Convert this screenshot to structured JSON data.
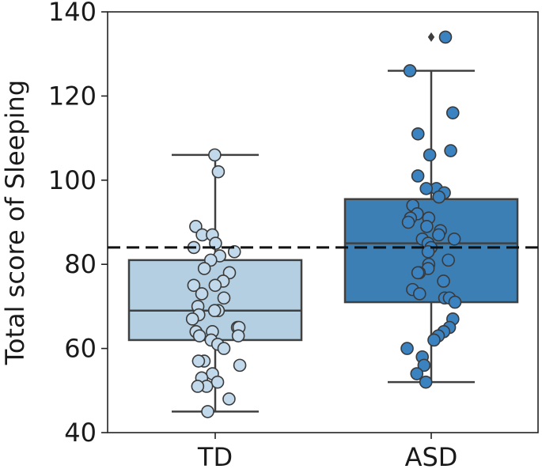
{
  "chart_data": {
    "type": "box",
    "title": "",
    "xlabel": "",
    "ylabel": "Total score of Sleeping",
    "ylim": [
      40,
      140
    ],
    "yticks": [
      40,
      60,
      80,
      100,
      120,
      140
    ],
    "ytick_labels": [
      "40",
      "60",
      "80",
      "100",
      "120",
      "140"
    ],
    "categories": [
      "TD",
      "ASD"
    ],
    "reference_line": {
      "y": 84,
      "style": "dashed",
      "color": "#111111"
    },
    "groups": [
      {
        "name": "TD",
        "box_color": "#b3cfe1",
        "point_color": "#c1d9ea",
        "whisker_low": 45,
        "q1": 62,
        "median": 69,
        "q3": 81,
        "whisker_high": 106,
        "outliers": [],
        "points": [
          106,
          102,
          89,
          87,
          87,
          85,
          84,
          83,
          82,
          81,
          79,
          78,
          76,
          75,
          75,
          73,
          72,
          70,
          69,
          69,
          68,
          67,
          65,
          65,
          64,
          64,
          63,
          63,
          62,
          61,
          60,
          57,
          57,
          56,
          54,
          53,
          52,
          51,
          51,
          48,
          45
        ]
      },
      {
        "name": "ASD",
        "box_color": "#3b7fb4",
        "point_color": "#3b82c0",
        "whisker_low": 52,
        "q1": 71,
        "median": 85,
        "q3": 95.5,
        "whisker_high": 126,
        "outliers": [
          134
        ],
        "points": [
          134,
          126,
          116,
          111,
          107,
          106,
          101,
          98,
          98,
          97,
          96,
          94,
          92,
          91,
          91,
          90,
          89,
          88,
          87,
          86,
          86,
          85,
          84,
          83,
          81,
          80,
          79,
          78,
          78,
          76,
          74,
          73,
          72,
          72,
          71,
          67,
          65,
          64,
          63,
          62,
          60,
          58,
          56,
          54,
          52
        ]
      }
    ]
  }
}
